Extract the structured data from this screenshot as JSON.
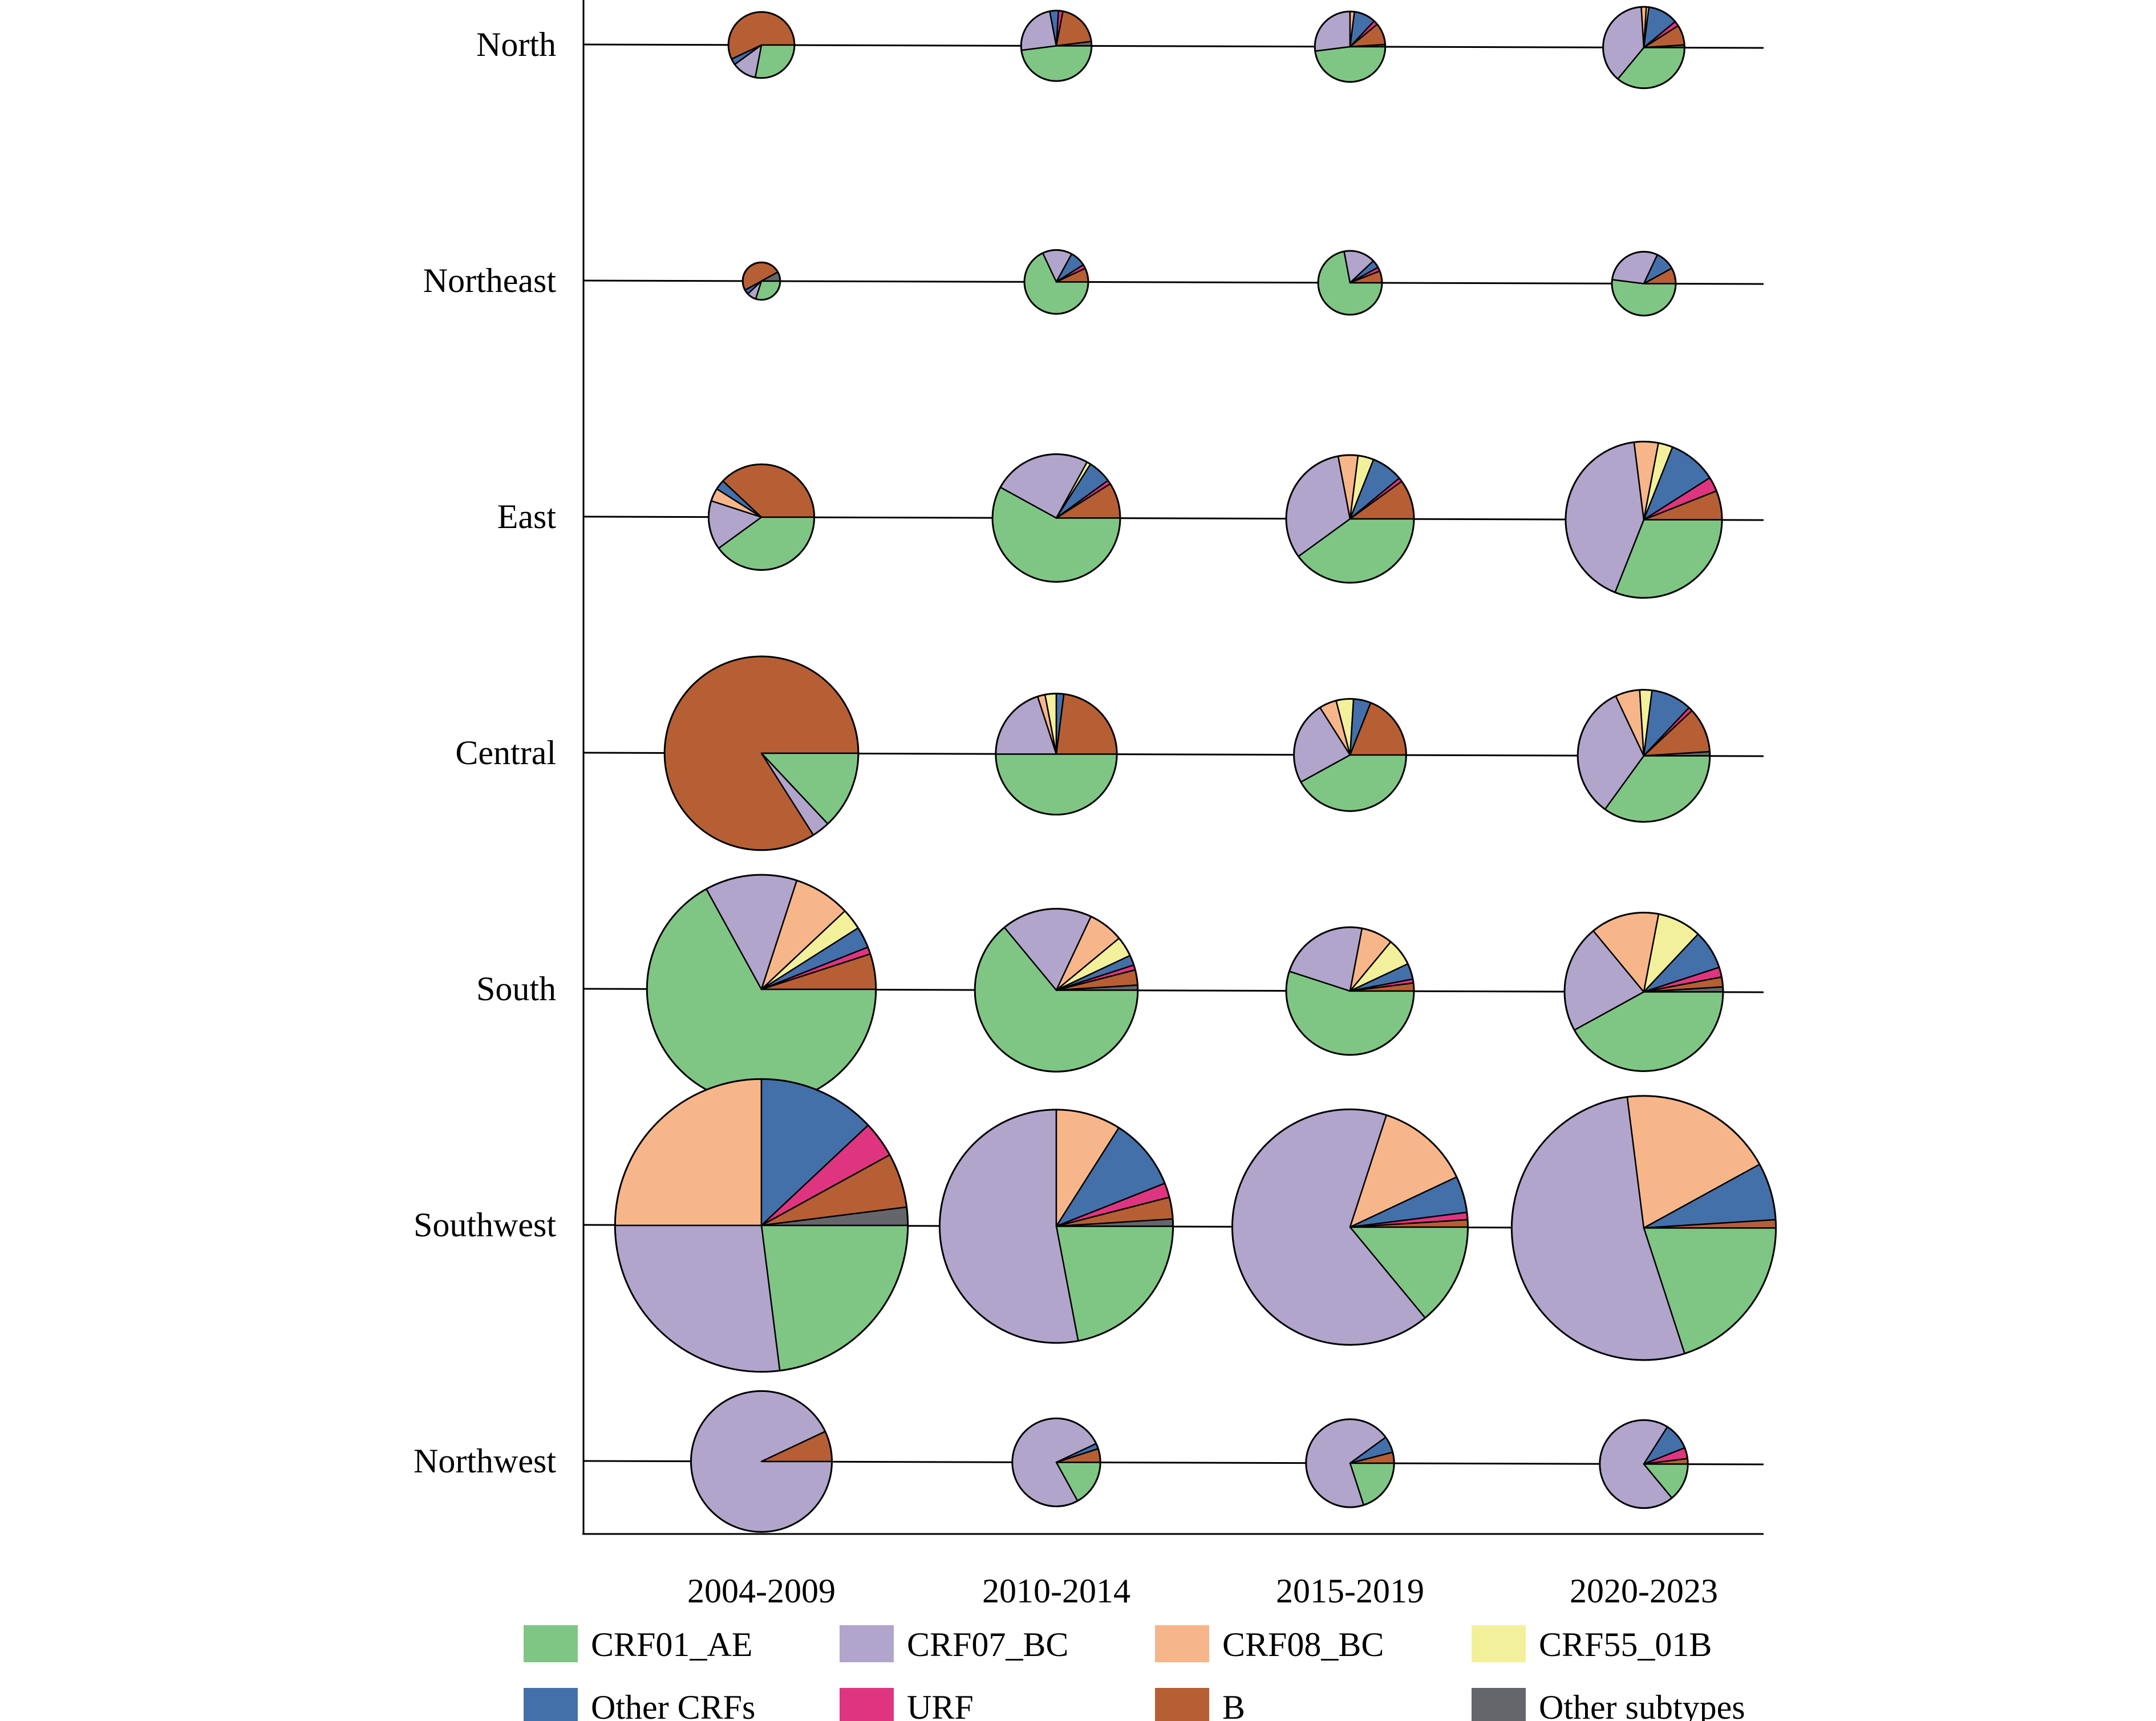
{
  "chart_data": {
    "type": "pie",
    "title": "",
    "regions": [
      "North",
      "Northeast",
      "East",
      "Central",
      "South",
      "Southwest",
      "Northwest"
    ],
    "periods": [
      "2004-2009",
      "2010-2014",
      "2015-2019",
      "2020-2023"
    ],
    "subtypes": [
      {
        "name": "CRF01_AE",
        "color": "#7fc685"
      },
      {
        "name": "CRF07_BC",
        "color": "#b1a5cc"
      },
      {
        "name": "CRF08_BC",
        "color": "#f7b68a"
      },
      {
        "name": "CRF55_01B",
        "color": "#f3f09c"
      },
      {
        "name": "Other CRFs",
        "color": "#4470aa"
      },
      {
        "name": "URF",
        "color": "#df3580"
      },
      {
        "name": "B",
        "color": "#b75f34"
      },
      {
        "name": "Other subtypes",
        "color": "#646669"
      }
    ],
    "pies": [
      {
        "region": "North",
        "period": "2004-2009",
        "size": 0.3,
        "values": [
          28,
          12,
          0,
          0,
          3,
          0,
          57,
          0
        ]
      },
      {
        "region": "North",
        "period": "2010-2014",
        "size": 0.32,
        "values": [
          48,
          24,
          0,
          0,
          4,
          2,
          20,
          2
        ]
      },
      {
        "region": "North",
        "period": "2015-2019",
        "size": 0.32,
        "values": [
          48,
          27,
          2,
          0,
          10,
          2,
          10,
          1
        ]
      },
      {
        "region": "North",
        "period": "2020-2023",
        "size": 0.37,
        "values": [
          36,
          38,
          2,
          1,
          12,
          2,
          8,
          1
        ]
      },
      {
        "region": "Northeast",
        "period": "2004-2009",
        "size": 0.17,
        "values": [
          30,
          8,
          0,
          0,
          4,
          0,
          50,
          8
        ]
      },
      {
        "region": "Northeast",
        "period": "2010-2014",
        "size": 0.29,
        "values": [
          68,
          15,
          0,
          0,
          8,
          2,
          7,
          0
        ]
      },
      {
        "region": "Northeast",
        "period": "2015-2019",
        "size": 0.29,
        "values": [
          72,
          16,
          0,
          0,
          4,
          2,
          6,
          0
        ]
      },
      {
        "region": "Northeast",
        "period": "2020-2023",
        "size": 0.29,
        "values": [
          52,
          30,
          0,
          0,
          10,
          0,
          8,
          0
        ]
      },
      {
        "region": "East",
        "period": "2004-2009",
        "size": 0.48,
        "values": [
          40,
          15,
          4,
          0,
          3,
          0,
          38,
          0
        ]
      },
      {
        "region": "East",
        "period": "2010-2014",
        "size": 0.58,
        "values": [
          58,
          25,
          0,
          1,
          6,
          1,
          9,
          0
        ]
      },
      {
        "region": "East",
        "period": "2015-2019",
        "size": 0.58,
        "values": [
          40,
          32,
          5,
          4,
          8,
          1,
          10,
          0
        ]
      },
      {
        "region": "East",
        "period": "2020-2023",
        "size": 0.71,
        "values": [
          31,
          42,
          5,
          3,
          10,
          3,
          6,
          0
        ]
      },
      {
        "region": "Central",
        "period": "2004-2009",
        "size": 0.88,
        "values": [
          13,
          3,
          0,
          0,
          0,
          0,
          84,
          0
        ]
      },
      {
        "region": "Central",
        "period": "2010-2014",
        "size": 0.55,
        "values": [
          50,
          20,
          2,
          3,
          2,
          0,
          23,
          0
        ]
      },
      {
        "region": "Central",
        "period": "2015-2019",
        "size": 0.51,
        "values": [
          42,
          24,
          5,
          5,
          5,
          0,
          19,
          0
        ]
      },
      {
        "region": "Central",
        "period": "2020-2023",
        "size": 0.6,
        "values": [
          35,
          33,
          6,
          3,
          10,
          1,
          11,
          1
        ]
      },
      {
        "region": "South",
        "period": "2004-2009",
        "size": 1.04,
        "values": [
          67,
          13,
          8,
          3,
          3,
          1,
          5,
          0
        ]
      },
      {
        "region": "South",
        "period": "2010-2014",
        "size": 0.74,
        "values": [
          64,
          18,
          7,
          4,
          2,
          1,
          3,
          1
        ]
      },
      {
        "region": "South",
        "period": "2015-2019",
        "size": 0.58,
        "values": [
          55,
          23,
          8,
          7,
          4,
          1,
          2,
          0
        ]
      },
      {
        "region": "South",
        "period": "2020-2023",
        "size": 0.72,
        "values": [
          42,
          22,
          14,
          9,
          8,
          2,
          2,
          1
        ]
      },
      {
        "region": "Southwest",
        "period": "2004-2009",
        "size": 1.33,
        "values": [
          23,
          27,
          25,
          0,
          13,
          4,
          6,
          2
        ]
      },
      {
        "region": "Southwest",
        "period": "2010-2014",
        "size": 1.06,
        "values": [
          22,
          53,
          9,
          0,
          10,
          2,
          3,
          1
        ]
      },
      {
        "region": "Southwest",
        "period": "2015-2019",
        "size": 1.07,
        "values": [
          14,
          66,
          13,
          0,
          5,
          1,
          1,
          0
        ]
      },
      {
        "region": "Southwest",
        "period": "2020-2023",
        "size": 1.2,
        "values": [
          20,
          53,
          19,
          0,
          7,
          0,
          1,
          0
        ]
      },
      {
        "region": "Northwest",
        "period": "2004-2009",
        "size": 0.64,
        "values": [
          0,
          93,
          0,
          0,
          0,
          0,
          7,
          0
        ]
      },
      {
        "region": "Northwest",
        "period": "2010-2014",
        "size": 0.4,
        "values": [
          17,
          76,
          0,
          0,
          2,
          0,
          5,
          0
        ]
      },
      {
        "region": "Northwest",
        "period": "2015-2019",
        "size": 0.4,
        "values": [
          20,
          70,
          0,
          0,
          6,
          0,
          4,
          0
        ]
      },
      {
        "region": "Northwest",
        "period": "2020-2023",
        "size": 0.4,
        "values": [
          14,
          70,
          0,
          0,
          10,
          4,
          2,
          0
        ]
      }
    ]
  }
}
